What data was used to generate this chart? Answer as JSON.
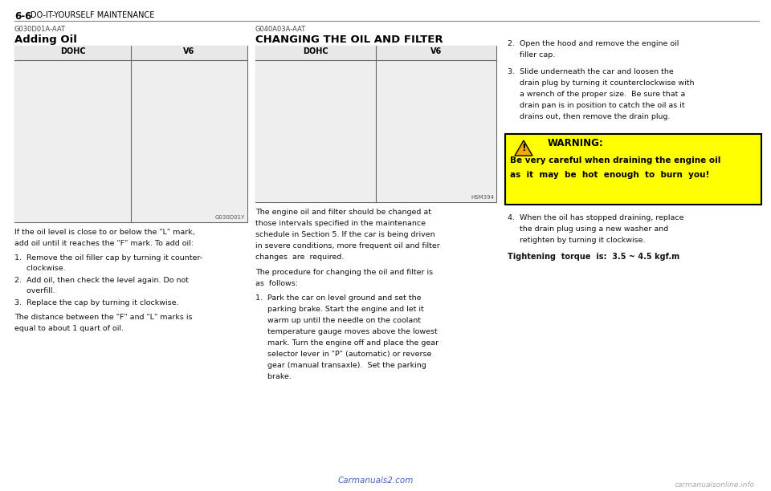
{
  "bg_color": "#ffffff",
  "header_bold": "6-6",
  "header_text": "DO-IT-YOURSELF MAINTENANCE",
  "left_section_code": "G030D01A-AAT",
  "left_section_title": "Adding Oil",
  "left_dohc_label": "DOHC",
  "left_v6_label": "V6",
  "left_img_watermark": "G030D01Y",
  "left_body_lines": [
    "If the oil level is close to or below the \"L\" mark,",
    "add oil until it reaches the \"F\" mark. To add oil:"
  ],
  "left_list": [
    "1.  Remove the oil filler cap by turning it counter-\n     clockwise.",
    "2.  Add oil, then check the level again. Do not\n     overfill.",
    "3.  Replace the cap by turning it clockwise."
  ],
  "left_footer_lines": [
    "The distance between the \"F\" and \"L\" marks is",
    "equal to about 1 quart of oil."
  ],
  "mid_section_code": "G040A03A-AAT",
  "mid_section_title": "CHANGING THE OIL AND FILTER",
  "mid_dohc_label": "DOHC",
  "mid_v6_label": "V6",
  "mid_img_watermark": "HSM394",
  "mid_body1_lines": [
    "The engine oil and filter should be changed at",
    "those intervals specified in the maintenance",
    "schedule in Section 5. If the car is being driven",
    "in severe conditions, more frequent oil and filter",
    "changes  are  required."
  ],
  "mid_body2_lines": [
    "The procedure for changing the oil and filter is",
    "as  follows:"
  ],
  "mid_list1_lines": [
    "1.  Park the car on level ground and set the",
    "     parking brake. Start the engine and let it",
    "     warm up until the needle on the coolant",
    "     temperature gauge moves above the lowest",
    "     mark. Turn the engine off and place the gear",
    "     selector lever in \"P\" (automatic) or reverse",
    "     gear (manual transaxle).  Set the parking",
    "     brake."
  ],
  "mid_watermark_url": "Carmanuals2.com",
  "right_item2_lines": [
    "2.  Open the hood and remove the engine oil",
    "     filler cap."
  ],
  "right_item3_lines": [
    "3.  Slide underneath the car and loosen the",
    "     drain plug by turning it counterclockwise with",
    "     a wrench of the proper size.  Be sure that a",
    "     drain pan is in position to catch the oil as it",
    "     drains out, then remove the drain plug."
  ],
  "warning_title": "WARNING:",
  "warning_body_lines": [
    "Be very careful when draining the engine oil",
    "as  it  may  be  hot  enough  to  burn  you!"
  ],
  "warning_bg": "#ffff00",
  "warning_border": "#000000",
  "right_item4_lines": [
    "4.  When the oil has stopped draining, replace",
    "     the drain plug using a new washer and",
    "     retighten by turning it clockwise."
  ],
  "right_torque": "Tightening  torque  is:  3.5 ~ 4.5 kgf.m",
  "footer_url": "carmanualsonline.info"
}
